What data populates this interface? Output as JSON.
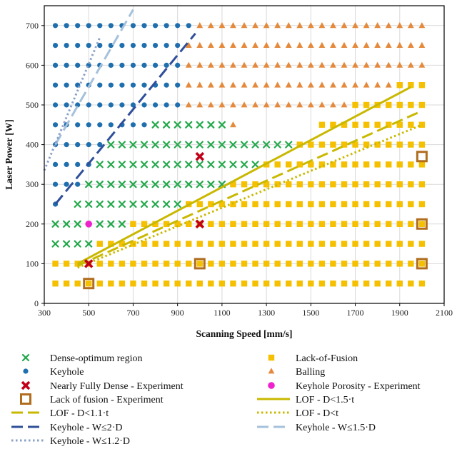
{
  "chart_data": {
    "type": "scatter",
    "xlabel": "Scanning Speed [mm/s]",
    "ylabel": "Laser Power [W]",
    "xlim": [
      300,
      2100
    ],
    "ylim": [
      0,
      750
    ],
    "xticks": [
      300,
      500,
      700,
      900,
      1100,
      1300,
      1500,
      1700,
      1900,
      2100
    ],
    "yticks": [
      0,
      100,
      200,
      300,
      400,
      500,
      600,
      700
    ],
    "grid": true,
    "colors": {
      "dense": "#22a84a",
      "keyhole": "#1f6fae",
      "lof_points": "#f5c000",
      "balling": "#e58a3c",
      "nearly_dense": "#c00018",
      "keyhole_porosity": "#ee22cc",
      "lof_experiment": "#b06d1e",
      "lof_lines": "#c9b800",
      "keyhole_2d": "#2f4f9a",
      "keyhole_15d": "#a5c1db",
      "keyhole_12d": "#8aa0c8"
    },
    "series": [
      {
        "name": "Dense-optimum region",
        "marker": "x",
        "regions": [
          {
            "power": 150,
            "speeds": [
              350,
              400,
              450,
              500
            ]
          },
          {
            "power": 200,
            "speeds": [
              350,
              400,
              450,
              550,
              600,
              650
            ]
          },
          {
            "power": 250,
            "speeds": [
              450,
              500,
              550,
              600,
              650,
              700,
              750,
              800,
              850,
              900
            ]
          },
          {
            "power": 300,
            "speeds": [
              500,
              550,
              600,
              650,
              700,
              750,
              800,
              850,
              900,
              950,
              1000,
              1050,
              1100
            ]
          },
          {
            "power": 350,
            "speeds": [
              550,
              600,
              650,
              700,
              750,
              800,
              850,
              900,
              950,
              1000,
              1050,
              1100,
              1150,
              1200,
              1250
            ]
          },
          {
            "power": 400,
            "speeds": [
              600,
              650,
              700,
              750,
              800,
              850,
              900,
              950,
              1000,
              1050,
              1100,
              1150,
              1200,
              1250,
              1300,
              1350,
              1400
            ]
          },
          {
            "power": 450,
            "speeds": [
              800,
              850,
              900,
              950,
              1000,
              1050,
              1100
            ]
          }
        ]
      },
      {
        "name": "Keyhole",
        "marker": "circle",
        "regions": [
          {
            "power": 250,
            "speeds": [
              350
            ]
          },
          {
            "power": 300,
            "speeds": [
              350,
              400,
              450
            ]
          },
          {
            "power": 350,
            "speeds": [
              350,
              400,
              450,
              500
            ]
          },
          {
            "power": 400,
            "speeds": [
              350,
              400,
              450,
              500,
              550
            ]
          },
          {
            "power": 450,
            "speeds": [
              350,
              400,
              450,
              500,
              550,
              600,
              650,
              700,
              750
            ]
          },
          {
            "power": 500,
            "speeds": [
              350,
              400,
              450,
              500,
              550,
              600,
              650,
              700,
              750,
              800,
              850,
              900
            ]
          },
          {
            "power": 550,
            "speeds": [
              350,
              400,
              450,
              500,
              550,
              600,
              650,
              700,
              750,
              800,
              850,
              900
            ]
          },
          {
            "power": 600,
            "speeds": [
              350,
              400,
              450,
              500,
              550,
              600,
              650,
              700,
              750,
              800,
              850,
              900
            ]
          },
          {
            "power": 650,
            "speeds": [
              350,
              400,
              450,
              500,
              550,
              600,
              650,
              700,
              750,
              800,
              850,
              900
            ]
          },
          {
            "power": 700,
            "speeds": [
              350,
              400,
              450,
              500,
              550,
              600,
              650,
              700,
              750,
              800,
              850,
              900,
              950
            ]
          }
        ]
      },
      {
        "name": "Lack-of-Fusion",
        "marker": "square",
        "regions": [
          {
            "power": 50,
            "speeds": [
              350,
              400,
              450,
              500,
              550,
              600,
              650,
              700,
              750,
              800,
              850,
              900,
              950,
              1000,
              1050,
              1100,
              1150,
              1200,
              1250,
              1300,
              1350,
              1400,
              1450,
              1500,
              1550,
              1600,
              1650,
              1700,
              1750,
              1800,
              1850,
              1900,
              1950,
              2000
            ]
          },
          {
            "power": 100,
            "speeds": [
              350,
              400,
              450,
              500,
              550,
              600,
              650,
              700,
              750,
              800,
              850,
              900,
              950,
              1000,
              1050,
              1100,
              1150,
              1200,
              1250,
              1300,
              1350,
              1400,
              1450,
              1500,
              1550,
              1600,
              1650,
              1700,
              1750,
              1800,
              1850,
              1900,
              1950,
              2000
            ]
          },
          {
            "power": 150,
            "speeds": [
              550,
              600,
              650,
              700,
              750,
              800,
              850,
              900,
              950,
              1000,
              1050,
              1100,
              1150,
              1200,
              1250,
              1300,
              1350,
              1400,
              1450,
              1500,
              1550,
              1600,
              1650,
              1700,
              1750,
              1800,
              1850,
              1900,
              1950,
              2000
            ]
          },
          {
            "power": 200,
            "speeds": [
              700,
              750,
              800,
              850,
              900,
              950,
              1000,
              1050,
              1100,
              1150,
              1200,
              1250,
              1300,
              1350,
              1400,
              1450,
              1500,
              1550,
              1600,
              1650,
              1700,
              1750,
              1800,
              1850,
              1900,
              1950,
              2000
            ]
          },
          {
            "power": 250,
            "speeds": [
              950,
              1000,
              1050,
              1100,
              1150,
              1200,
              1250,
              1300,
              1350,
              1400,
              1450,
              1500,
              1550,
              1600,
              1650,
              1700,
              1750,
              1800,
              1850,
              1900,
              1950,
              2000
            ]
          },
          {
            "power": 300,
            "speeds": [
              1150,
              1200,
              1250,
              1300,
              1350,
              1400,
              1450,
              1500,
              1550,
              1600,
              1650,
              1700,
              1750,
              1800,
              1850,
              1900,
              1950,
              2000
            ]
          },
          {
            "power": 350,
            "speeds": [
              1300,
              1350,
              1400,
              1450,
              1500,
              1550,
              1600,
              1650,
              1700,
              1750,
              1800,
              1850,
              1900,
              1950,
              2000
            ]
          },
          {
            "power": 400,
            "speeds": [
              1450,
              1500,
              1550,
              1600,
              1650,
              1700,
              1750,
              1800,
              1850,
              1900,
              1950,
              2000
            ]
          },
          {
            "power": 450,
            "speeds": [
              1550,
              1600,
              1650,
              1700,
              1750,
              1800,
              1850,
              1900,
              1950,
              2000
            ]
          },
          {
            "power": 500,
            "speeds": [
              1700,
              1750,
              1800,
              1850,
              1900,
              1950,
              2000
            ]
          },
          {
            "power": 550,
            "speeds": [
              1900,
              1950,
              2000
            ]
          }
        ]
      },
      {
        "name": "Balling",
        "marker": "triangle",
        "regions": [
          {
            "power": 450,
            "speeds": [
              1150
            ]
          },
          {
            "power": 500,
            "speeds": [
              950,
              1000,
              1050,
              1100,
              1150,
              1200,
              1250,
              1300,
              1350,
              1400,
              1450,
              1500,
              1550,
              1600,
              1650
            ]
          },
          {
            "power": 550,
            "speeds": [
              950,
              1000,
              1050,
              1100,
              1150,
              1200,
              1250,
              1300,
              1350,
              1400,
              1450,
              1500,
              1550,
              1600,
              1650,
              1700,
              1750,
              1800,
              1850
            ]
          },
          {
            "power": 600,
            "speeds": [
              950,
              1000,
              1050,
              1100,
              1150,
              1200,
              1250,
              1300,
              1350,
              1400,
              1450,
              1500,
              1550,
              1600,
              1650,
              1700,
              1750,
              1800,
              1850,
              1900,
              1950,
              2000
            ]
          },
          {
            "power": 650,
            "speeds": [
              950,
              1000,
              1050,
              1100,
              1150,
              1200,
              1250,
              1300,
              1350,
              1400,
              1450,
              1500,
              1550,
              1600,
              1650,
              1700,
              1750,
              1800,
              1850,
              1900,
              1950,
              2000
            ]
          },
          {
            "power": 700,
            "speeds": [
              1000,
              1050,
              1100,
              1150,
              1200,
              1250,
              1300,
              1350,
              1400,
              1450,
              1500,
              1550,
              1600,
              1650,
              1700,
              1750,
              1800,
              1850,
              1900,
              1950,
              2000
            ]
          }
        ]
      },
      {
        "name": "Nearly Fully Dense - Experiment",
        "marker": "bigx",
        "points": [
          [
            500,
            100
          ],
          [
            1000,
            200
          ],
          [
            1000,
            370
          ]
        ]
      },
      {
        "name": "Keyhole Porosity - Experiment",
        "marker": "dot",
        "points": [
          [
            500,
            200
          ]
        ]
      },
      {
        "name": "Lack of fusion - Experiment",
        "marker": "hollow-square",
        "points": [
          [
            500,
            50
          ],
          [
            1000,
            100
          ],
          [
            2000,
            100
          ],
          [
            2000,
            200
          ],
          [
            2000,
            370
          ]
        ]
      }
    ],
    "lines": [
      {
        "name": "LOF - D<1.5·t",
        "style": "solid",
        "points": [
          [
            450,
            100
          ],
          [
            1950,
            545
          ]
        ]
      },
      {
        "name": "LOF - D<1.1·t",
        "style": "dash",
        "points": [
          [
            450,
            95
          ],
          [
            2000,
            485
          ]
        ]
      },
      {
        "name": "LOF - D<t",
        "style": "dot",
        "points": [
          [
            450,
            90
          ],
          [
            2000,
            450
          ]
        ]
      },
      {
        "name": "Keyhole - W≤2·D",
        "style": "dash",
        "points": [
          [
            350,
            250
          ],
          [
            980,
            680
          ]
        ]
      },
      {
        "name": "Keyhole - W≤1.5·D",
        "style": "dash",
        "points": [
          [
            350,
            400
          ],
          [
            700,
            740
          ]
        ]
      },
      {
        "name": "Keyhole - W≤1.2·D",
        "style": "dot",
        "points": [
          [
            300,
            335
          ],
          [
            550,
            670
          ]
        ]
      }
    ],
    "legend": [
      {
        "label": "Dense-optimum region",
        "key": "dense"
      },
      {
        "label": "Lack-of-Fusion",
        "key": "lof_points"
      },
      {
        "label": "Keyhole",
        "key": "keyhole"
      },
      {
        "label": "Balling",
        "key": "balling"
      },
      {
        "label": "Nearly Fully Dense - Experiment",
        "key": "nearly_dense"
      },
      {
        "label": "Keyhole Porosity - Experiment",
        "key": "keyhole_porosity"
      },
      {
        "label": "Lack of fusion - Experiment",
        "key": "lof_experiment"
      },
      {
        "label": "LOF - D<1.5·t",
        "key": "lof_15"
      },
      {
        "label": "LOF - D<1.1·t",
        "key": "lof_11"
      },
      {
        "label": "LOF - D<t",
        "key": "lof_1"
      },
      {
        "label": "Keyhole - W≤2·D",
        "key": "kh_2"
      },
      {
        "label": "Keyhole - W≤1.5·D",
        "key": "kh_15"
      },
      {
        "label": "Keyhole - W≤1.2·D",
        "key": "kh_12"
      }
    ],
    "legend_position": "bottom"
  }
}
